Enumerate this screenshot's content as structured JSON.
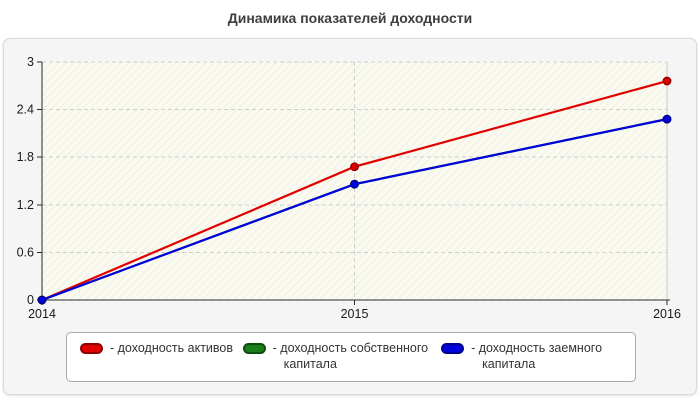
{
  "title": "Динамика показателей доходности",
  "chart_data": {
    "type": "line",
    "x_labels": [
      "2014",
      "2015",
      "2016"
    ],
    "series": [
      {
        "name": "доходность активов",
        "values": [
          0,
          1.68,
          2.76
        ],
        "color": "#e10000",
        "marker_edge": "#8f0000"
      },
      {
        "name": "доходность собственного капитала",
        "values": [
          0,
          1.46,
          2.28
        ],
        "color": "#1b7e1b",
        "marker_edge": "#0d4d0d",
        "visibility": "not distinguishable in plot; overlapped by the blue series"
      },
      {
        "name": "доходность заемного капитала",
        "values": [
          0,
          1.46,
          2.28
        ],
        "color": "#0202dd",
        "marker_edge": "#00008f"
      }
    ],
    "ylim": [
      0,
      3
    ],
    "yticks": [
      "0",
      "0.6",
      "1.2",
      "1.8",
      "2.4",
      "3"
    ],
    "grid": {
      "horizontal": "dashed",
      "vertical_dashed_at": "2015",
      "right_edge_solid": true
    },
    "legend_position": "bottom",
    "plot_background": "#fafaf1"
  },
  "legend": {
    "items": [
      {
        "label": "- доходность активов"
      },
      {
        "label": "- доходность собственного капитала"
      },
      {
        "label": "- доходность заемного капитала"
      }
    ]
  },
  "colors": {
    "panel_bg": "#f5f5f5",
    "grid": "#cfcfcf",
    "axis": "#2b2b2b",
    "legend_border": "#a9a9a9"
  }
}
